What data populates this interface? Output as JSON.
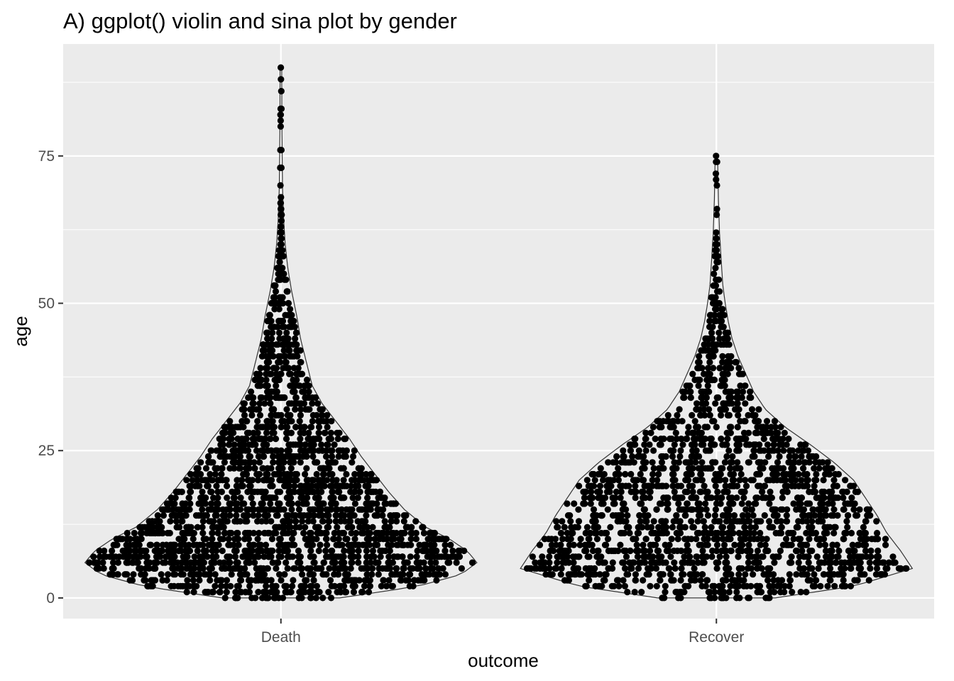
{
  "chart_data": {
    "type": "violin",
    "subtype": "violin with sina-jittered points",
    "title": "A) ggplot() violin and sina plot by gender",
    "xlabel": "outcome",
    "ylabel": "age",
    "categories": [
      "Death",
      "Recover"
    ],
    "ylim": [
      -3.5,
      94
    ],
    "yticks": [
      0,
      25,
      50,
      75
    ],
    "grid": true,
    "legend": "none",
    "colors": {
      "panel": "#ebebeb",
      "grid": "#ffffff",
      "points": "#000000",
      "violin_outline": "#333333"
    },
    "series": [
      {
        "category": "Death",
        "n_points": 2300,
        "min": 0,
        "max": 90,
        "density_profile": [
          [
            0,
            0.3
          ],
          [
            2,
            0.7
          ],
          [
            4,
            0.92
          ],
          [
            6,
            1.0
          ],
          [
            8,
            0.95
          ],
          [
            10,
            0.86
          ],
          [
            12,
            0.74
          ],
          [
            15,
            0.63
          ],
          [
            18,
            0.55
          ],
          [
            21,
            0.48
          ],
          [
            24,
            0.41
          ],
          [
            27,
            0.35
          ],
          [
            30,
            0.28
          ],
          [
            33,
            0.21
          ],
          [
            36,
            0.16
          ],
          [
            40,
            0.13
          ],
          [
            44,
            0.1
          ],
          [
            48,
            0.08
          ],
          [
            52,
            0.055
          ],
          [
            56,
            0.035
          ],
          [
            60,
            0.022
          ],
          [
            64,
            0.014
          ],
          [
            70,
            0.008
          ],
          [
            80,
            0.005
          ],
          [
            90,
            0.004
          ]
        ]
      },
      {
        "category": "Recover",
        "n_points": 1900,
        "min": 0,
        "max": 75,
        "density_profile": [
          [
            0,
            0.3
          ],
          [
            2,
            0.7
          ],
          [
            5,
            1.0
          ],
          [
            8,
            0.94
          ],
          [
            11,
            0.87
          ],
          [
            14,
            0.82
          ],
          [
            17,
            0.76
          ],
          [
            20,
            0.7
          ],
          [
            23,
            0.6
          ],
          [
            26,
            0.48
          ],
          [
            29,
            0.35
          ],
          [
            32,
            0.25
          ],
          [
            35,
            0.19
          ],
          [
            38,
            0.15
          ],
          [
            41,
            0.11
          ],
          [
            44,
            0.08
          ],
          [
            47,
            0.06
          ],
          [
            50,
            0.045
          ],
          [
            53,
            0.033
          ],
          [
            57,
            0.025
          ],
          [
            62,
            0.016
          ],
          [
            68,
            0.01
          ],
          [
            75,
            0.006
          ]
        ]
      }
    ]
  }
}
